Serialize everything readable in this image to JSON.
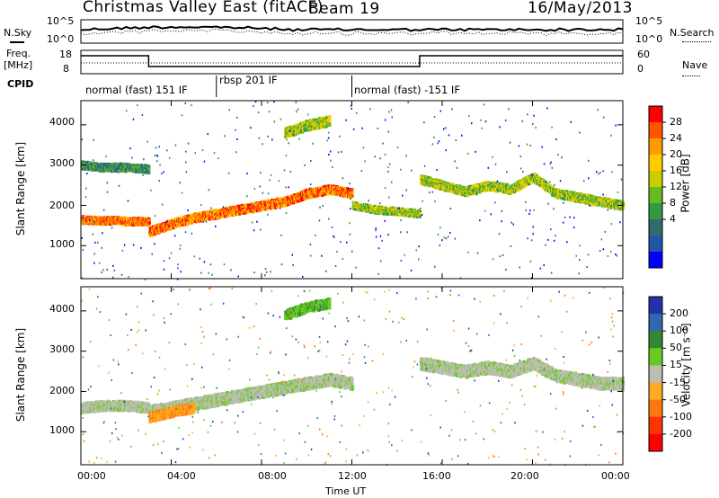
{
  "header": {
    "station": "Christmas Valley East (fitACF)",
    "beam": "Beam 19",
    "date": "16/May/2013"
  },
  "top_panels": {
    "nsky_label": "N.Sky",
    "nsearch_label": "N.Search",
    "freq_label_1": "Freq.",
    "freq_label_2": "[MHz]",
    "nave_label": "Nave",
    "cpid_label": "CPID",
    "nsky_ticks": [
      "10^5",
      "10^0"
    ],
    "nsearch_ticks": [
      "10^5",
      "10^0"
    ],
    "freq_ticks": [
      "18",
      "8"
    ],
    "nave_ticks": [
      "60",
      "0"
    ]
  },
  "cpid": [
    {
      "start": 0,
      "end": 6,
      "label": "normal (fast) 151 IF"
    },
    {
      "start": 6,
      "end": 12,
      "label": "rbsp 201 IF"
    },
    {
      "start": 12,
      "end": 24,
      "label": "normal (fast) -151 IF"
    }
  ],
  "colorbars": {
    "power_title": "Power [dB]",
    "power_ticks": [
      "28",
      "24",
      "20",
      "16",
      "12",
      "8",
      "4"
    ],
    "power_colors": [
      "#ff0000",
      "#ff5500",
      "#ff9a00",
      "#ffcc00",
      "#cccc00",
      "#66bb22",
      "#339944",
      "#336b6b",
      "#2255aa",
      "#0000ff"
    ],
    "velocity_title": "Velocity [m s⁻¹]",
    "velocity_ticks": [
      "200",
      "100",
      "50",
      "15",
      "-15",
      "-50",
      "-100",
      "-200"
    ],
    "velocity_colors": [
      "#2233aa",
      "#3366aa",
      "#338833",
      "#66cc22",
      "#bdbdb0",
      "#ffaa22",
      "#ff7711",
      "#ff3300",
      "#ff0000"
    ]
  },
  "chart_data": [
    {
      "type": "heatmap",
      "name": "power",
      "ylabel": "Slant Range [km]",
      "yticks": [
        1000,
        2000,
        3000,
        4000
      ],
      "ylim": [
        180,
        4600
      ],
      "xlim": [
        0,
        24
      ],
      "bands": [
        {
          "x": [
            0.0,
            0.5,
            1.0,
            1.5,
            2.0,
            2.5,
            3.0
          ],
          "y": [
            1650,
            1630,
            1620,
            1640,
            1600,
            1610,
            1600
          ],
          "width": 180,
          "level": "high"
        },
        {
          "x": [
            3.0,
            4.0,
            5.0,
            6.0,
            7.0,
            8.0,
            9.0,
            10.0,
            11.0,
            12.0
          ],
          "y": [
            1350,
            1550,
            1700,
            1800,
            1900,
            2000,
            2100,
            2300,
            2400,
            2300
          ],
          "width": 220,
          "level": "high"
        },
        {
          "x": [
            12.0,
            13.0,
            14.0,
            15.0
          ],
          "y": [
            2000,
            1900,
            1850,
            1800
          ],
          "width": 180,
          "level": "mid"
        },
        {
          "x": [
            15.0,
            16.0,
            17.0,
            18.0,
            19.0,
            20.0,
            21.0,
            22.0,
            23.0,
            24.0
          ],
          "y": [
            2650,
            2500,
            2350,
            2500,
            2400,
            2700,
            2300,
            2200,
            2100,
            2000
          ],
          "width": 220,
          "level": "mid"
        },
        {
          "x": [
            0.0,
            1.0,
            2.0,
            3.0
          ],
          "y": [
            3000,
            2950,
            2950,
            2900
          ],
          "width": 200,
          "level": "low"
        },
        {
          "x": [
            9.0,
            10.0,
            11.0
          ],
          "y": [
            3800,
            4000,
            4100
          ],
          "width": 250,
          "level": "mid"
        }
      ]
    },
    {
      "type": "heatmap",
      "name": "velocity",
      "ylabel": "Slant Range [km]",
      "xlabel": "Time UT",
      "yticks": [
        1000,
        2000,
        3000,
        4000
      ],
      "ylim": [
        180,
        4600
      ],
      "xlim": [
        0,
        24
      ],
      "xticks": [
        "00:00",
        "04:00",
        "08:00",
        "12:00",
        "16:00",
        "20:00",
        "00:00"
      ],
      "bands": [
        {
          "x": [
            0.0,
            1.0,
            2.0,
            3.0
          ],
          "y": [
            1600,
            1650,
            1650,
            1600
          ],
          "width": 250,
          "level": "near-zero"
        },
        {
          "x": [
            3.0,
            4.0,
            5.0,
            6.0,
            7.0,
            8.0,
            9.0,
            10.0,
            11.0,
            12.0
          ],
          "y": [
            1500,
            1600,
            1700,
            1800,
            1900,
            2000,
            2100,
            2200,
            2300,
            2200
          ],
          "width": 300,
          "level": "near-zero"
        },
        {
          "x": [
            15.0,
            16.0,
            17.0,
            18.0,
            19.0,
            20.0,
            21.0,
            22.0,
            23.0,
            24.0
          ],
          "y": [
            2700,
            2600,
            2500,
            2600,
            2500,
            2700,
            2400,
            2300,
            2200,
            2200
          ],
          "width": 300,
          "level": "near-zero"
        },
        {
          "x": [
            9.0,
            10.0,
            11.0
          ],
          "y": [
            3900,
            4100,
            4200
          ],
          "width": 250,
          "level": "positive"
        },
        {
          "x": [
            3.0,
            4.0,
            5.0
          ],
          "y": [
            1350,
            1500,
            1600
          ],
          "width": 250,
          "level": "negative"
        }
      ]
    }
  ]
}
